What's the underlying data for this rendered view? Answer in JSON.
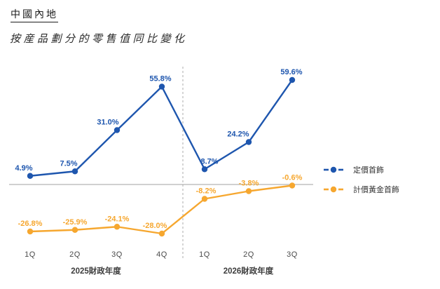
{
  "header": {
    "title": "中國內地",
    "subtitle": "按産品劃分的零售值同比變化"
  },
  "chart_data": {
    "type": "line",
    "categories": [
      "1Q",
      "2Q",
      "3Q",
      "4Q",
      "1Q",
      "2Q",
      "3Q"
    ],
    "group_labels": [
      "2025財政年度",
      "2026財政年度"
    ],
    "divider_after_category_index": 3,
    "series": [
      {
        "name": "定價首飾",
        "color": "#1e56ae",
        "values": [
          4.9,
          7.5,
          31.0,
          55.8,
          8.7,
          24.2,
          59.6
        ],
        "labels": [
          "4.9%",
          "7.5%",
          "31.0%",
          "55.8%",
          "8.7%",
          "24.2%",
          "59.6%"
        ]
      },
      {
        "name": "計價黃金首飾",
        "color": "#f6a72f",
        "values": [
          -26.8,
          -25.9,
          -24.1,
          -28.0,
          -8.2,
          -3.8,
          -0.6
        ],
        "labels": [
          "-26.8%",
          "-25.9%",
          "-24.1%",
          "-28.0%",
          "-8.2%",
          "-3.8%",
          "-0.6%"
        ]
      }
    ],
    "baseline_value": 0,
    "ylim": [
      -35,
      70
    ],
    "grid": false,
    "legend_position": "right",
    "axis_line_color": "#c9c9c9",
    "divider_color": "#ababab",
    "tick_text_color": "#4a4a4a"
  }
}
